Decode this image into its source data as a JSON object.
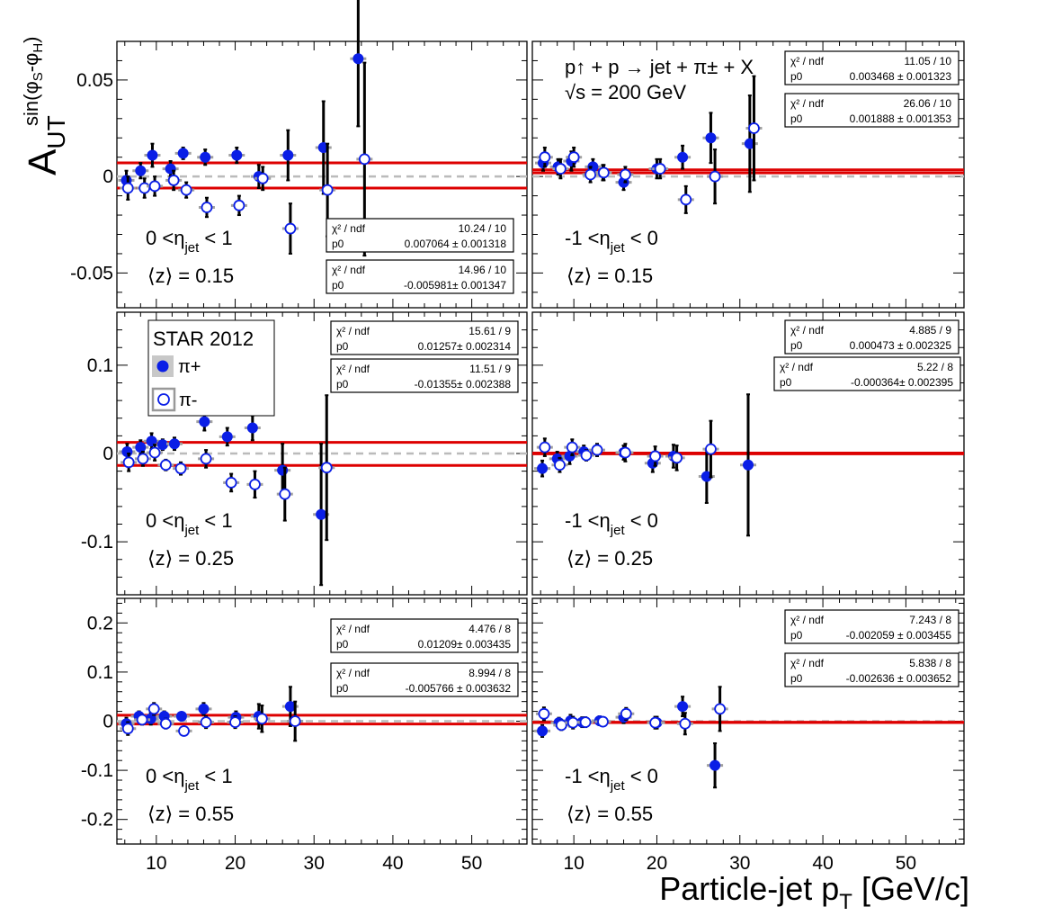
{
  "figure": {
    "ylabel_main": "A",
    "ylabel_sub": "UT",
    "ylabel_sup": "sin(φ",
    "ylabel_sup_s": "S",
    "ylabel_sup_mid": "-φ",
    "ylabel_sup_h": "H",
    "ylabel_sup_end": ")",
    "xlabel_main": "Particle-jet p",
    "xlabel_sub": "T",
    "xlabel_end": " [GeV/c]",
    "reaction_line1": "p↑ + p → jet + π± + X",
    "reaction_line2": "√s = 200 GeV",
    "legend_title": "STAR 2012",
    "legend_piplus": "π+",
    "legend_piminus": "π-",
    "colors": {
      "piplus": "#0a1ee6",
      "fit": "#dd0000",
      "syst": "#a0a0a0",
      "zero": "#bbbbbb"
    }
  },
  "chart_data": [
    {
      "type": "scatter",
      "row": 0,
      "col": 0,
      "ylim": [
        -0.068,
        0.07
      ],
      "yticks": [
        -0.05,
        0,
        0.05
      ],
      "ytick_labels": [
        "-0.05",
        "0",
        "0.05"
      ],
      "xlim": [
        5,
        57
      ],
      "eta_label": "0 <η_jet < 1",
      "z_label": "⟨z⟩ = 0.15",
      "fits": [
        {
          "name": "π+",
          "chi2_label": "χ² / ndf",
          "chi2": "10.24 / 10",
          "p0_label": "p0",
          "p0": "0.007064 ± 0.001318",
          "value": 0.007064
        },
        {
          "name": "π-",
          "chi2_label": "χ² / ndf",
          "chi2": "14.96 / 10",
          "p0_label": "p0",
          "p0": "-0.005981± 0.001347",
          "value": -0.005981
        }
      ],
      "series": [
        {
          "name": "π+",
          "points": [
            [
              6.2,
              -0.002,
              0.005
            ],
            [
              8.0,
              0.003,
              0.004
            ],
            [
              9.5,
              0.011,
              0.006
            ],
            [
              11.8,
              0.004,
              0.004
            ],
            [
              13.4,
              0.012,
              0.003
            ],
            [
              16.2,
              0.01,
              0.004
            ],
            [
              20.2,
              0.011,
              0.004
            ],
            [
              23.0,
              0.0,
              0.006
            ],
            [
              26.7,
              0.011,
              0.013
            ],
            [
              31.2,
              0.015,
              0.024
            ],
            [
              35.6,
              0.061,
              0.035
            ]
          ]
        },
        {
          "name": "π-",
          "points": [
            [
              6.4,
              -0.006,
              0.006
            ],
            [
              8.5,
              -0.006,
              0.005
            ],
            [
              9.8,
              -0.005,
              0.005
            ],
            [
              12.2,
              -0.002,
              0.005
            ],
            [
              13.8,
              -0.007,
              0.004
            ],
            [
              16.4,
              -0.016,
              0.005
            ],
            [
              20.5,
              -0.015,
              0.005
            ],
            [
              23.5,
              -0.001,
              0.006
            ],
            [
              27.0,
              -0.027,
              0.013
            ],
            [
              31.7,
              -0.007,
              0.024
            ],
            [
              36.4,
              0.009,
              0.05
            ]
          ]
        }
      ]
    },
    {
      "type": "scatter",
      "row": 0,
      "col": 1,
      "ylim": [
        -0.068,
        0.07
      ],
      "yticks": [
        -0.05,
        0,
        0.05
      ],
      "xlim": [
        5,
        57
      ],
      "eta_label": "-1 <η_jet < 0",
      "z_label": "⟨z⟩ = 0.15",
      "fits": [
        {
          "name": "π+",
          "chi2_label": "χ² / ndf",
          "chi2": "11.05 / 10",
          "p0_label": "p0",
          "p0": "0.003468 ± 0.001323",
          "value": 0.003468
        },
        {
          "name": "π-",
          "chi2_label": "χ² / ndf",
          "chi2": "26.06 / 10",
          "p0_label": "p0",
          "p0": "0.001888 ± 0.001353",
          "value": 0.001888
        }
      ],
      "series": [
        {
          "name": "π+",
          "points": [
            [
              6.3,
              0.007,
              0.004
            ],
            [
              8.1,
              0.005,
              0.004
            ],
            [
              9.7,
              0.008,
              0.005
            ],
            [
              12.3,
              0.005,
              0.004
            ],
            [
              13.5,
              0.002,
              0.004
            ],
            [
              16.0,
              -0.003,
              0.004
            ],
            [
              20.0,
              0.004,
              0.005
            ],
            [
              23.1,
              0.01,
              0.006
            ],
            [
              26.5,
              0.02,
              0.013
            ],
            [
              31.2,
              0.017,
              0.025
            ]
          ]
        },
        {
          "name": "π-",
          "points": [
            [
              6.5,
              0.01,
              0.005
            ],
            [
              8.4,
              0.004,
              0.005
            ],
            [
              10.0,
              0.01,
              0.005
            ],
            [
              12.0,
              0.001,
              0.004
            ],
            [
              13.6,
              0.002,
              0.004
            ],
            [
              16.2,
              0.001,
              0.004
            ],
            [
              20.4,
              0.004,
              0.005
            ],
            [
              23.5,
              -0.012,
              0.007
            ],
            [
              27.0,
              0.0,
              0.014
            ],
            [
              31.7,
              0.025,
              0.027
            ]
          ]
        }
      ]
    },
    {
      "type": "scatter",
      "row": 1,
      "col": 0,
      "ylim": [
        -0.16,
        0.16
      ],
      "yticks": [
        -0.1,
        0,
        0.1
      ],
      "ytick_labels": [
        "-0.1",
        "0",
        "0.1"
      ],
      "xlim": [
        5,
        57
      ],
      "eta_label": "0 <η_jet < 1",
      "z_label": "⟨z⟩ = 0.25",
      "fits": [
        {
          "name": "π+",
          "chi2_label": "χ² / ndf",
          "chi2": "15.61 / 9",
          "p0_label": "p0",
          "p0": "0.01257± 0.002314",
          "value": 0.01257
        },
        {
          "name": "π-",
          "chi2_label": "χ² / ndf",
          "chi2": "11.51 / 9",
          "p0_label": "p0",
          "p0": "-0.01355± 0.002388",
          "value": -0.01355
        }
      ],
      "series": [
        {
          "name": "π+",
          "points": [
            [
              6.3,
              0.002,
              0.009
            ],
            [
              8.0,
              0.007,
              0.008
            ],
            [
              9.4,
              0.014,
              0.009
            ],
            [
              10.8,
              0.01,
              0.006
            ],
            [
              12.3,
              0.011,
              0.007
            ],
            [
              16.1,
              0.036,
              0.01
            ],
            [
              19.0,
              0.019,
              0.01
            ],
            [
              22.2,
              0.029,
              0.014
            ],
            [
              26.0,
              -0.019,
              0.03
            ],
            [
              30.9,
              -0.069,
              0.08
            ]
          ]
        },
        {
          "name": "π-",
          "points": [
            [
              6.5,
              -0.01,
              0.01
            ],
            [
              8.3,
              -0.006,
              0.008
            ],
            [
              9.8,
              0.001,
              0.009
            ],
            [
              11.2,
              -0.013,
              0.006
            ],
            [
              13.1,
              -0.017,
              0.007
            ],
            [
              16.3,
              -0.006,
              0.01
            ],
            [
              19.5,
              -0.033,
              0.01
            ],
            [
              22.5,
              -0.035,
              0.015
            ],
            [
              26.3,
              -0.046,
              0.03
            ],
            [
              31.6,
              -0.016,
              0.082
            ]
          ]
        }
      ]
    },
    {
      "type": "scatter",
      "row": 1,
      "col": 1,
      "ylim": [
        -0.16,
        0.16
      ],
      "yticks": [
        -0.1,
        0,
        0.1
      ],
      "xlim": [
        5,
        57
      ],
      "eta_label": "-1 <η_jet < 0",
      "z_label": "⟨z⟩ = 0.25",
      "fits": [
        {
          "name": "π+",
          "chi2_label": "χ² / ndf",
          "chi2": "4.885 / 9",
          "p0_label": "p0",
          "p0": "0.000473 ± 0.002325",
          "value": 0.000473
        },
        {
          "name": "π-",
          "chi2_label": "χ² / ndf",
          "chi2": "5.22 / 8",
          "p0_label": "p0",
          "p0": "-0.000364± 0.002395",
          "value": -0.000364
        }
      ],
      "series": [
        {
          "name": "π+",
          "points": [
            [
              6.2,
              -0.017,
              0.009
            ],
            [
              8.0,
              -0.006,
              0.008
            ],
            [
              9.5,
              -0.003,
              0.009
            ],
            [
              11.2,
              0.002,
              0.007
            ],
            [
              16.0,
              0.001,
              0.008
            ],
            [
              19.5,
              -0.011,
              0.01
            ],
            [
              22.0,
              -0.003,
              0.013
            ],
            [
              26.0,
              -0.026,
              0.03
            ],
            [
              31.0,
              -0.013,
              0.08
            ]
          ]
        },
        {
          "name": "π-",
          "points": [
            [
              6.5,
              0.007,
              0.01
            ],
            [
              8.3,
              -0.013,
              0.008
            ],
            [
              9.8,
              0.007,
              0.009
            ],
            [
              11.5,
              -0.002,
              0.006
            ],
            [
              12.8,
              0.004,
              0.007
            ],
            [
              16.2,
              0.001,
              0.01
            ],
            [
              19.8,
              -0.003,
              0.011
            ],
            [
              22.4,
              -0.005,
              0.014
            ],
            [
              26.5,
              0.005,
              0.032
            ]
          ]
        }
      ]
    },
    {
      "type": "scatter",
      "row": 2,
      "col": 0,
      "ylim": [
        -0.25,
        0.25
      ],
      "yticks": [
        -0.2,
        -0.1,
        0,
        0.1,
        0.2
      ],
      "ytick_labels": [
        "-0.2",
        "-0.1",
        "0",
        "0.1",
        "0.2"
      ],
      "xlim": [
        5,
        57
      ],
      "eta_label": "0 <η_jet < 1",
      "z_label": "⟨z⟩ = 0.55",
      "fits": [
        {
          "name": "π+",
          "chi2_label": "χ² / ndf",
          "chi2": "4.476 / 8",
          "p0_label": "p0",
          "p0": "0.01209± 0.003435",
          "value": 0.01209
        },
        {
          "name": "π-",
          "chi2_label": "χ² / ndf",
          "chi2": "8.994 / 8",
          "p0_label": "p0",
          "p0": "-0.005766 ± 0.003632",
          "value": -0.005766
        }
      ],
      "series": [
        {
          "name": "π+",
          "points": [
            [
              6.2,
              -0.005,
              0.012
            ],
            [
              7.8,
              0.01,
              0.01
            ],
            [
              9.3,
              0.005,
              0.012
            ],
            [
              11.0,
              0.01,
              0.01
            ],
            [
              13.2,
              0.01,
              0.008
            ],
            [
              16.0,
              0.025,
              0.012
            ],
            [
              20.1,
              0.008,
              0.012
            ],
            [
              23.0,
              0.01,
              0.025
            ],
            [
              27.0,
              0.03,
              0.04
            ]
          ]
        },
        {
          "name": "π-",
          "points": [
            [
              6.4,
              -0.015,
              0.013
            ],
            [
              8.2,
              0.003,
              0.01
            ],
            [
              9.7,
              0.025,
              0.012
            ],
            [
              11.2,
              -0.005,
              0.01
            ],
            [
              13.5,
              -0.02,
              0.009
            ],
            [
              16.3,
              -0.002,
              0.012
            ],
            [
              20.0,
              -0.002,
              0.012
            ],
            [
              23.4,
              0.005,
              0.027
            ],
            [
              27.6,
              0.0,
              0.04
            ]
          ]
        }
      ]
    },
    {
      "type": "scatter",
      "row": 2,
      "col": 1,
      "ylim": [
        -0.25,
        0.25
      ],
      "yticks": [
        -0.2,
        -0.1,
        0,
        0.1,
        0.2
      ],
      "xlim": [
        5,
        57
      ],
      "eta_label": "-1 <η_jet < 0",
      "z_label": "⟨z⟩ = 0.55",
      "fits": [
        {
          "name": "π+",
          "chi2_label": "χ² / ndf",
          "chi2": "7.243 / 8",
          "p0_label": "p0",
          "p0": "-0.002059 ± 0.003455",
          "value": -0.002059
        },
        {
          "name": "π-",
          "chi2_label": "χ² / ndf",
          "chi2": "5.838 / 8",
          "p0_label": "p0",
          "p0": "-0.002636 ± 0.003652",
          "value": -0.002636
        }
      ],
      "series": [
        {
          "name": "π+",
          "points": [
            [
              6.2,
              -0.02,
              0.012
            ],
            [
              8.2,
              -0.003,
              0.01
            ],
            [
              9.6,
              0.001,
              0.012
            ],
            [
              11.0,
              -0.002,
              0.01
            ],
            [
              13.1,
              0.001,
              0.009
            ],
            [
              16.0,
              0.008,
              0.012
            ],
            [
              20.0,
              -0.003,
              0.012
            ],
            [
              23.1,
              0.03,
              0.02
            ],
            [
              27.0,
              -0.09,
              0.045
            ]
          ]
        },
        {
          "name": "π-",
          "points": [
            [
              6.4,
              0.015,
              0.013
            ],
            [
              8.5,
              -0.008,
              0.01
            ],
            [
              9.9,
              -0.003,
              0.012
            ],
            [
              11.4,
              -0.002,
              0.01
            ],
            [
              13.5,
              -0.001,
              0.009
            ],
            [
              16.3,
              0.015,
              0.012
            ],
            [
              19.8,
              -0.003,
              0.012
            ],
            [
              23.4,
              -0.005,
              0.022
            ],
            [
              27.6,
              0.025,
              0.045
            ]
          ]
        }
      ]
    }
  ]
}
